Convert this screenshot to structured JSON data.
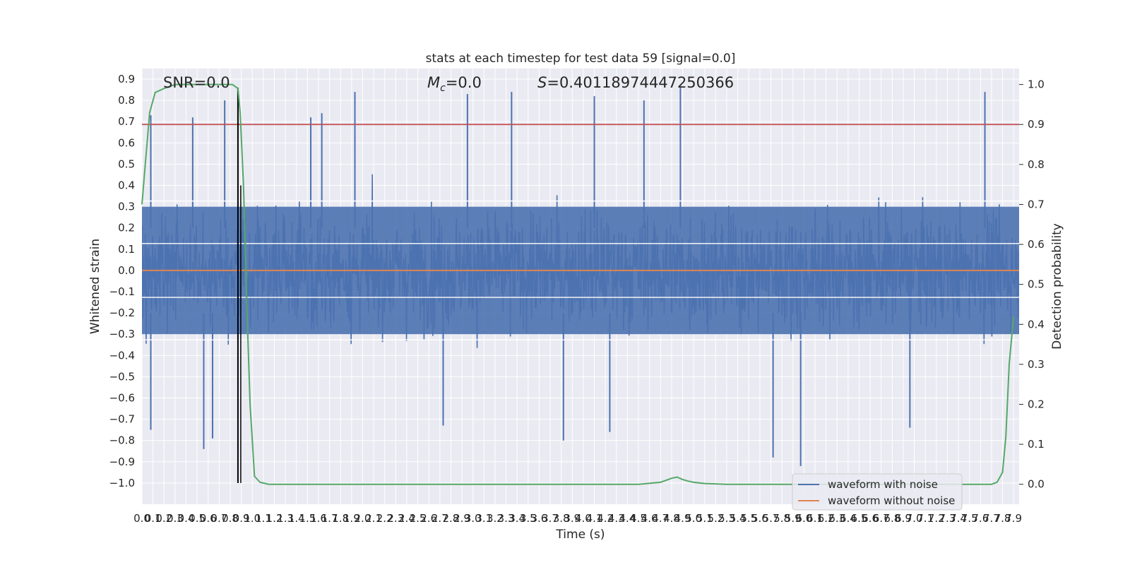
{
  "chart_data": {
    "type": "line",
    "title": "stats at each timestep for test data 59 [signal=0.0]",
    "xlabel": "Time (s)",
    "ylabel": "Whitened strain",
    "y2label": "Detection probability",
    "xlim": [
      0.0,
      7.95
    ],
    "ylim": [
      -1.1,
      0.95
    ],
    "y2lim": [
      -0.05,
      1.04
    ],
    "x_ticks": [
      "0.0",
      "0.1",
      "0.2",
      "0.3",
      "0.4",
      "0.5",
      "0.6",
      "0.7",
      "0.8",
      "0.9",
      "1.0",
      "1.1",
      "1.2",
      "1.3",
      "1.4",
      "1.5",
      "1.6",
      "1.7",
      "1.8",
      "1.9",
      "2.0",
      "2.1",
      "2.2",
      "2.3",
      "2.4",
      "2.5",
      "2.6",
      "2.7",
      "2.8",
      "2.9",
      "3.0",
      "3.1",
      "3.2",
      "3.3",
      "3.4",
      "3.5",
      "3.6",
      "3.7",
      "3.8",
      "3.9",
      "4.0",
      "4.1",
      "4.2",
      "4.3",
      "4.4",
      "4.5",
      "4.6",
      "4.7",
      "4.8",
      "4.9",
      "5.0",
      "5.1",
      "5.2",
      "5.3",
      "5.4",
      "5.5",
      "5.6",
      "5.7",
      "5.8",
      "5.9",
      "6.0",
      "6.1",
      "6.2",
      "6.3",
      "6.4",
      "6.5",
      "6.6",
      "6.7",
      "6.8",
      "6.9",
      "7.0",
      "7.1",
      "7.2",
      "7.3",
      "7.4",
      "7.5",
      "7.6",
      "7.7",
      "7.8",
      "7.9"
    ],
    "y_ticks": [
      "0.9",
      "0.8",
      "0.7",
      "0.6",
      "0.5",
      "0.4",
      "0.3",
      "0.2",
      "0.1",
      "0.0",
      "−0.1",
      "−0.2",
      "−0.3",
      "−0.4",
      "−0.5",
      "−0.6",
      "−0.7",
      "−0.8",
      "−0.9",
      "−1.0"
    ],
    "y2_ticks": [
      "1.0",
      "0.9",
      "0.8",
      "0.7",
      "0.6",
      "0.5",
      "0.4",
      "0.3",
      "0.2",
      "0.1",
      "0.0"
    ],
    "annotations": {
      "snr": "SNR=0.0",
      "mc_symbol": "M",
      "mc_sub": "c",
      "mc_value": "=0.0",
      "s_symbol": "S",
      "s_value": "=0.40118974447250366"
    },
    "series": [
      {
        "name": "waveform with noise",
        "color": "#4c72b0",
        "noise_band": [
          -0.3,
          0.3
        ],
        "spike_maxima": [
          {
            "x": 0.08,
            "y": 0.73
          },
          {
            "x": 0.46,
            "y": 0.72
          },
          {
            "x": 0.75,
            "y": 0.8
          },
          {
            "x": 1.53,
            "y": 0.72
          },
          {
            "x": 1.63,
            "y": 0.74
          },
          {
            "x": 1.93,
            "y": 0.84
          },
          {
            "x": 2.95,
            "y": 0.83
          },
          {
            "x": 3.35,
            "y": 0.84
          },
          {
            "x": 4.1,
            "y": 0.82
          },
          {
            "x": 4.55,
            "y": 0.8
          },
          {
            "x": 4.88,
            "y": 0.86
          },
          {
            "x": 7.64,
            "y": 0.84
          }
        ],
        "spike_minima": [
          {
            "x": 0.08,
            "y": -0.75
          },
          {
            "x": 0.56,
            "y": -0.84
          },
          {
            "x": 0.64,
            "y": -0.79
          },
          {
            "x": 2.73,
            "y": -0.73
          },
          {
            "x": 3.82,
            "y": -0.8
          },
          {
            "x": 4.24,
            "y": -0.76
          },
          {
            "x": 5.72,
            "y": -0.88
          },
          {
            "x": 5.97,
            "y": -0.92
          },
          {
            "x": 6.96,
            "y": -0.74
          }
        ]
      },
      {
        "name": "waveform without noise",
        "color": "#dd8452",
        "x": [
          0.0,
          7.95
        ],
        "y": [
          0.0,
          0.0
        ]
      }
    ],
    "detection_probability": {
      "color": "#55a868",
      "x": [
        0.0,
        0.03,
        0.07,
        0.12,
        0.2,
        0.3,
        0.5,
        0.7,
        0.82,
        0.87,
        0.89,
        0.92,
        0.95,
        0.98,
        1.02,
        1.07,
        1.15,
        1.3,
        2.0,
        3.0,
        4.0,
        4.5,
        4.7,
        4.75,
        4.8,
        4.85,
        4.9,
        4.95,
        5.0,
        5.1,
        5.3,
        5.6,
        6.0,
        7.0,
        7.5,
        7.7,
        7.75,
        7.8,
        7.83,
        7.86,
        7.9
      ],
      "y": [
        0.7,
        0.8,
        0.93,
        0.98,
        0.99,
        1.0,
        1.0,
        1.0,
        1.0,
        0.99,
        0.93,
        0.75,
        0.45,
        0.2,
        0.02,
        0.005,
        0.0,
        0.0,
        0.0,
        0.0,
        0.0,
        0.0,
        0.005,
        0.01,
        0.015,
        0.018,
        0.012,
        0.008,
        0.005,
        0.002,
        0.0,
        0.0,
        0.0,
        0.0,
        0.0,
        0.0,
        0.005,
        0.03,
        0.12,
        0.3,
        0.42
      ]
    },
    "threshold_line": {
      "y": 0.9,
      "axis": "right",
      "color": "#c44e52"
    },
    "marker_line": {
      "x": 0.87,
      "y_top": 0.86,
      "y_bottom": -1.0,
      "color": "#000000"
    },
    "legend": {
      "placement": "lower-right",
      "entries": [
        "waveform with noise",
        "waveform without noise"
      ]
    },
    "grid": true,
    "background": "#eaeaf2"
  }
}
